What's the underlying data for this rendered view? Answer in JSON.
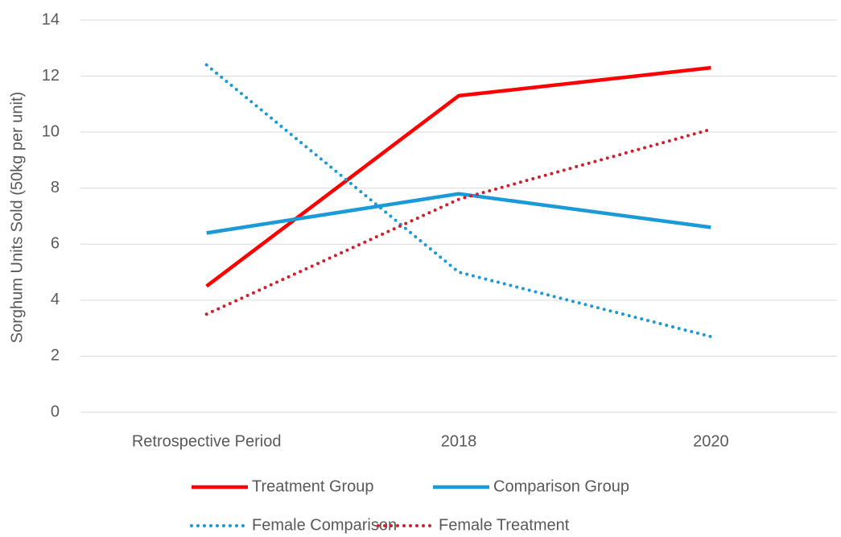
{
  "chart_data": {
    "type": "line",
    "y_label": "Sorghum Units Sold (50kg per unit)",
    "categories": [
      "Retrospective Period",
      "2018",
      "2020"
    ],
    "series": [
      {
        "name": "Treatment Group",
        "color": "#ff0000",
        "style": "solid",
        "values": [
          4.5,
          11.3,
          12.3
        ]
      },
      {
        "name": "Comparison Group",
        "color": "#1a9ad6",
        "style": "solid",
        "values": [
          6.4,
          7.8,
          6.6
        ]
      },
      {
        "name": "Female Comparison",
        "color": "#1a9ad6",
        "style": "dotted",
        "values": [
          12.4,
          5.0,
          2.7
        ]
      },
      {
        "name": "Female Treatment",
        "color": "#d0202e",
        "style": "dotted",
        "values": [
          3.5,
          7.6,
          10.1
        ]
      }
    ],
    "ylim": [
      0,
      14
    ],
    "yticks": [
      0,
      2,
      4,
      6,
      8,
      10,
      12,
      14
    ],
    "grid": true
  }
}
